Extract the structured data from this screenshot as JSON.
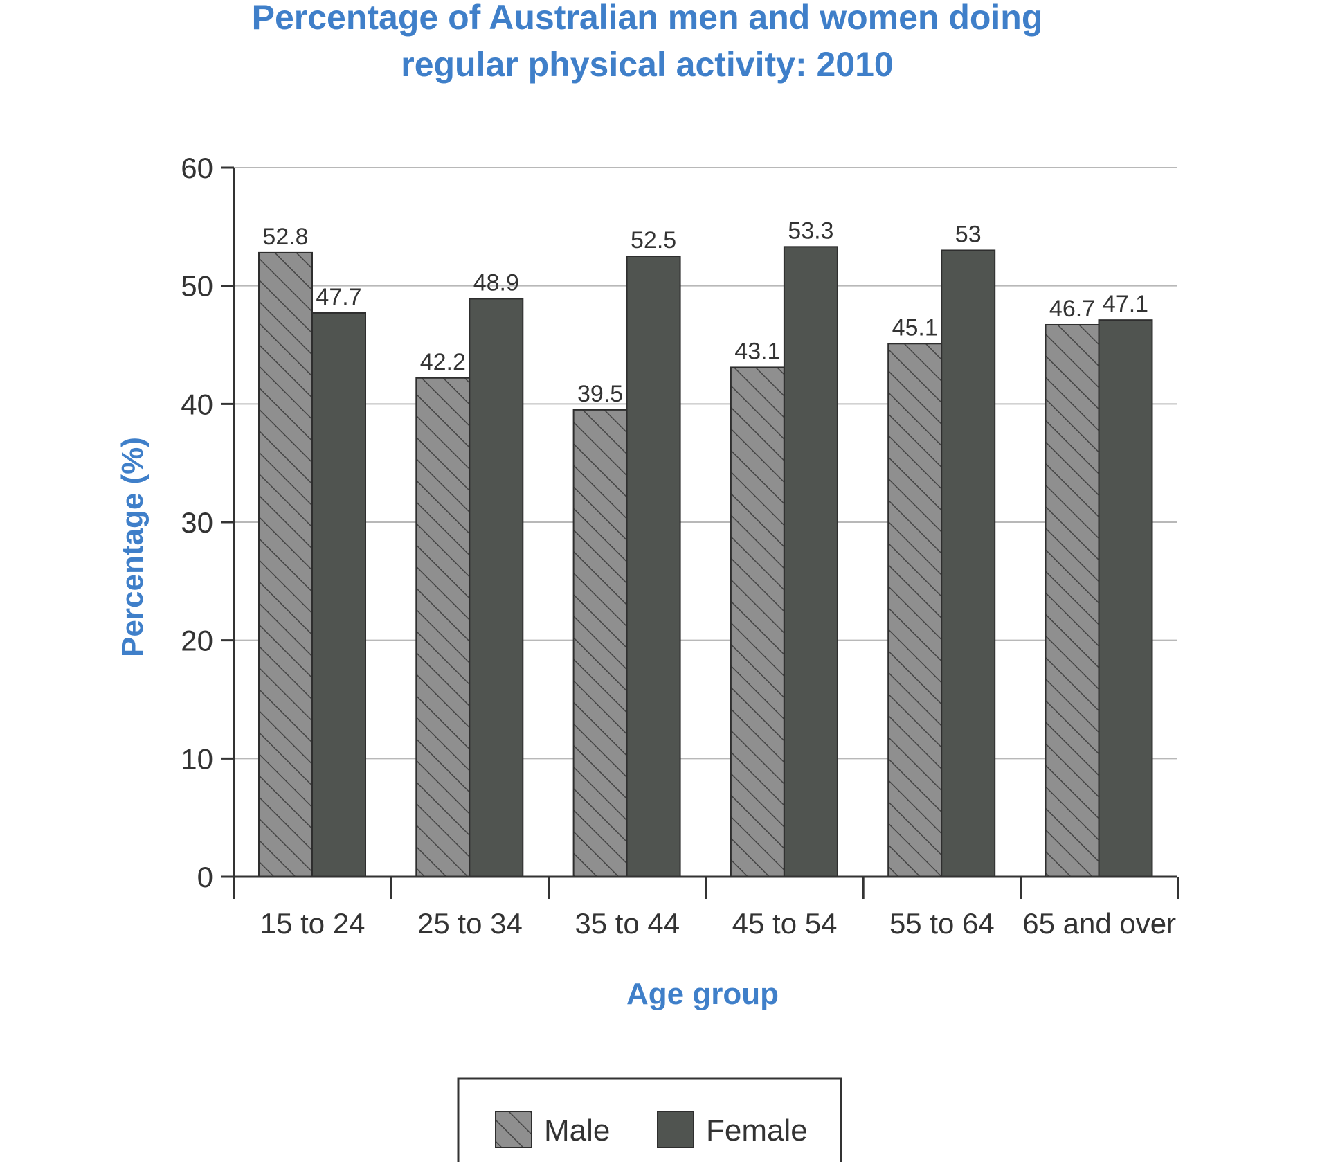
{
  "chart_data": {
    "type": "bar",
    "title_lines": [
      "Percentage of Australian men and women doing",
      "regular physical activity: 2010"
    ],
    "xlabel": "Age group",
    "ylabel": "Percentage (%)",
    "ylim": [
      0,
      60
    ],
    "yticks": [
      0,
      10,
      20,
      30,
      40,
      50,
      60
    ],
    "grid": true,
    "legend_position": "bottom-center",
    "categories": [
      "15 to 24",
      "25 to 34",
      "35 to 44",
      "45 to 54",
      "55 to 64",
      "65 and over"
    ],
    "series": [
      {
        "name": "Male",
        "values": [
          52.8,
          42.2,
          39.5,
          43.1,
          45.1,
          46.7
        ],
        "labels": [
          "52.8",
          "42.2",
          "39.5",
          "43.1",
          "45.1",
          "46.7"
        ],
        "fill": "#8f8f8f",
        "pattern": "diagonal-hatch"
      },
      {
        "name": "Female",
        "values": [
          47.7,
          48.9,
          52.5,
          53.3,
          53,
          47.1
        ],
        "labels": [
          "47.7",
          "48.9",
          "52.5",
          "53.3",
          "53",
          "47.1"
        ],
        "fill": "#505450",
        "pattern": "solid"
      }
    ],
    "colors": {
      "title": "#3f7fc9",
      "axis": "#333333",
      "grid": "#b8b8b8",
      "hatch_line": "#444444"
    }
  }
}
